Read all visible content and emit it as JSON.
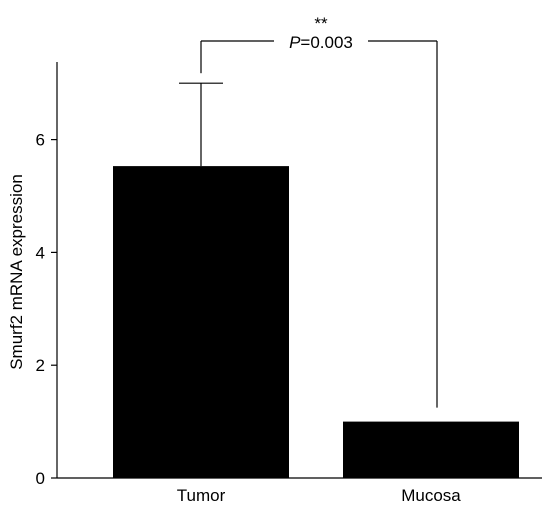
{
  "chart_data": {
    "type": "bar",
    "categories": [
      "Tumor",
      "Mucosa"
    ],
    "values": [
      5.53,
      1.0
    ],
    "error_upper": [
      7.0,
      1.0
    ],
    "ylabel": "Smurf2 mRNA expression",
    "xlabel": "",
    "ylim": [
      0,
      7.5
    ],
    "yticks": [
      0,
      2,
      4,
      6
    ],
    "grid": false,
    "bar_color": "#000000",
    "significance": {
      "stars": "**",
      "p_italic": "P",
      "p_value": "=0.003"
    }
  }
}
